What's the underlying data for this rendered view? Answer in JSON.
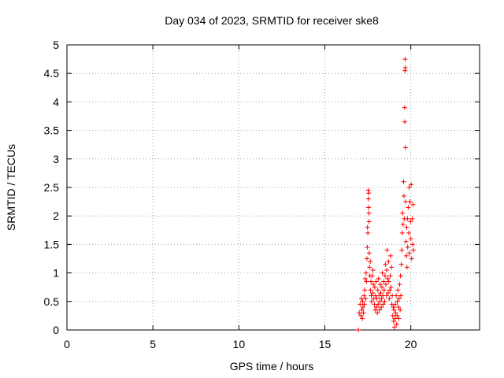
{
  "chart_data": {
    "type": "scatter",
    "title": "Day 034 of 2023, SRMTID for receiver ske8",
    "xlabel": "GPS time / hours",
    "ylabel": "SRMTID / TECUs",
    "xlim": [
      0,
      24
    ],
    "ylim": [
      0,
      5
    ],
    "xticks": [
      0,
      5,
      10,
      15,
      20
    ],
    "xtick_labels": [
      "0",
      "5",
      "10",
      "15",
      "20"
    ],
    "yticks": [
      0,
      0.5,
      1,
      1.5,
      2,
      2.5,
      3,
      3.5,
      4,
      4.5,
      5
    ],
    "ytick_labels": [
      "0",
      "0.5",
      "1",
      "1.5",
      "2",
      "2.5",
      "3",
      "3.5",
      "4",
      "4.5",
      "5"
    ],
    "grid": true,
    "marker": "+",
    "color": "#ff0000",
    "series": [
      {
        "name": "ske8",
        "points": [
          [
            16.95,
            0.0
          ],
          [
            17.0,
            0.3
          ],
          [
            17.05,
            0.45
          ],
          [
            17.1,
            0.25
          ],
          [
            17.12,
            0.55
          ],
          [
            17.15,
            0.35
          ],
          [
            17.18,
            0.2
          ],
          [
            17.2,
            0.5
          ],
          [
            17.22,
            0.4
          ],
          [
            17.25,
            0.3
          ],
          [
            17.28,
            0.6
          ],
          [
            17.3,
            0.45
          ],
          [
            17.32,
            0.7
          ],
          [
            17.35,
            0.9
          ],
          [
            17.38,
            0.55
          ],
          [
            17.4,
            1.0
          ],
          [
            17.42,
            0.85
          ],
          [
            17.45,
            1.25
          ],
          [
            17.47,
            1.45
          ],
          [
            17.48,
            1.8
          ],
          [
            17.5,
            1.7
          ],
          [
            17.52,
            2.45
          ],
          [
            17.53,
            2.3
          ],
          [
            17.54,
            2.15
          ],
          [
            17.55,
            2.4
          ],
          [
            17.56,
            2.05
          ],
          [
            17.57,
            1.9
          ],
          [
            17.58,
            1.35
          ],
          [
            17.6,
            1.1
          ],
          [
            17.62,
            0.95
          ],
          [
            17.64,
            1.2
          ],
          [
            17.65,
            0.7
          ],
          [
            17.68,
            0.85
          ],
          [
            17.7,
            0.6
          ],
          [
            17.72,
            0.5
          ],
          [
            17.75,
            0.95
          ],
          [
            17.78,
            0.65
          ],
          [
            17.8,
            1.05
          ],
          [
            17.82,
            0.8
          ],
          [
            17.85,
            0.55
          ],
          [
            17.88,
            0.45
          ],
          [
            17.9,
            0.75
          ],
          [
            17.92,
            0.35
          ],
          [
            17.95,
            0.6
          ],
          [
            17.98,
            0.85
          ],
          [
            18.0,
            0.4
          ],
          [
            18.02,
            0.55
          ],
          [
            18.05,
            0.3
          ],
          [
            18.08,
            0.7
          ],
          [
            18.1,
            0.45
          ],
          [
            18.12,
            0.9
          ],
          [
            18.15,
            0.6
          ],
          [
            18.18,
            0.35
          ],
          [
            18.2,
            0.5
          ],
          [
            18.22,
            0.8
          ],
          [
            18.25,
            0.65
          ],
          [
            18.28,
            0.4
          ],
          [
            18.3,
            0.55
          ],
          [
            18.32,
            0.75
          ],
          [
            18.35,
            1.0
          ],
          [
            18.38,
            0.6
          ],
          [
            18.4,
            0.45
          ],
          [
            18.42,
            0.85
          ],
          [
            18.45,
            0.7
          ],
          [
            18.48,
            0.5
          ],
          [
            18.5,
            0.95
          ],
          [
            18.52,
            1.15
          ],
          [
            18.55,
            0.8
          ],
          [
            18.58,
            0.6
          ],
          [
            18.6,
            1.05
          ],
          [
            18.62,
            1.4
          ],
          [
            18.65,
            0.9
          ],
          [
            18.68,
            0.65
          ],
          [
            18.7,
            1.2
          ],
          [
            18.72,
            0.85
          ],
          [
            18.75,
            0.55
          ],
          [
            18.78,
            0.7
          ],
          [
            18.8,
            0.95
          ],
          [
            18.82,
            1.3
          ],
          [
            18.85,
            0.75
          ],
          [
            18.88,
            1.1
          ],
          [
            18.9,
            0.45
          ],
          [
            18.92,
            0.6
          ],
          [
            18.95,
            0.25
          ],
          [
            18.98,
            0.4
          ],
          [
            19.0,
            0.15
          ],
          [
            19.02,
            0.35
          ],
          [
            19.05,
            0.05
          ],
          [
            19.08,
            0.2
          ],
          [
            19.1,
            0.45
          ],
          [
            19.12,
            0.3
          ],
          [
            19.15,
            0.6
          ],
          [
            19.18,
            0.1
          ],
          [
            19.2,
            0.25
          ],
          [
            19.22,
            0.5
          ],
          [
            19.25,
            0.7
          ],
          [
            19.28,
            0.4
          ],
          [
            19.3,
            0.2
          ],
          [
            19.32,
            0.55
          ],
          [
            19.35,
            0.8
          ],
          [
            19.38,
            0.35
          ],
          [
            19.4,
            0.95
          ],
          [
            19.42,
            0.6
          ],
          [
            19.45,
            1.15
          ],
          [
            19.48,
            1.4
          ],
          [
            19.5,
            1.7
          ],
          [
            19.52,
            2.05
          ],
          [
            19.55,
            1.85
          ],
          [
            19.58,
            2.6
          ],
          [
            19.6,
            2.35
          ],
          [
            19.62,
            1.95
          ],
          [
            19.64,
            3.9
          ],
          [
            19.65,
            3.65
          ],
          [
            19.66,
            4.55
          ],
          [
            19.67,
            4.75
          ],
          [
            19.68,
            4.6
          ],
          [
            19.69,
            3.2
          ],
          [
            19.7,
            2.25
          ],
          [
            19.72,
            1.55
          ],
          [
            19.74,
            1.3
          ],
          [
            19.76,
            1.8
          ],
          [
            19.78,
            1.1
          ],
          [
            19.8,
            1.95
          ],
          [
            19.82,
            1.45
          ],
          [
            19.85,
            2.15
          ],
          [
            19.88,
            1.7
          ],
          [
            19.9,
            2.5
          ],
          [
            19.92,
            1.35
          ],
          [
            19.95,
            2.25
          ],
          [
            19.98,
            1.9
          ],
          [
            20.0,
            1.6
          ],
          [
            20.02,
            2.55
          ],
          [
            20.05,
            1.25
          ],
          [
            20.08,
            1.95
          ],
          [
            20.1,
            1.5
          ],
          [
            20.12,
            2.2
          ],
          [
            20.15,
            1.4
          ]
        ]
      }
    ]
  }
}
